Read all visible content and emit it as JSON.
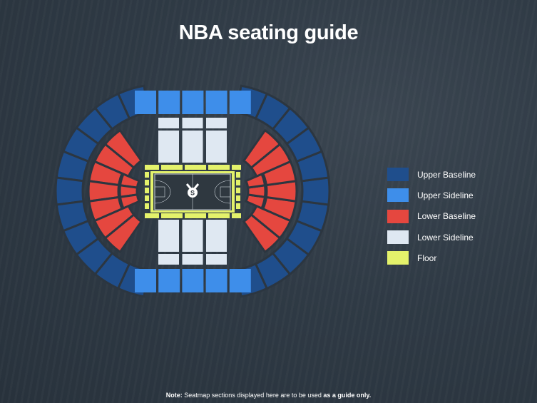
{
  "title": "NBA seating guide",
  "legend": [
    {
      "label": "Upper Baseline",
      "color": "#1f4e8c"
    },
    {
      "label": "Upper Sideline",
      "color": "#3e8eea"
    },
    {
      "label": "Lower Baseline",
      "color": "#e5473f"
    },
    {
      "label": "Lower Sideline",
      "color": "#dfe8f2"
    },
    {
      "label": "Floor",
      "color": "#e4f26b"
    }
  ],
  "note": {
    "prefix": "Note:",
    "text": " Seatmap sections displayed here are to be used ",
    "bold": "as a guide only."
  },
  "court_logo": "S"
}
